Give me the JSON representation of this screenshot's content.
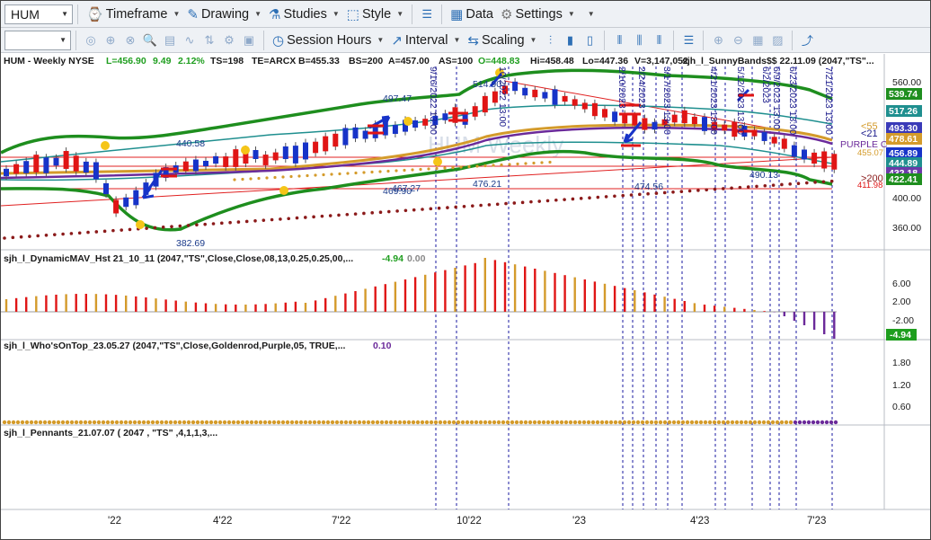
{
  "toolbar": {
    "symbol": "HUM",
    "items": [
      {
        "label": "Timeframe"
      },
      {
        "label": "Drawing"
      },
      {
        "label": "Studies"
      },
      {
        "label": "Style"
      },
      {
        "label": "Data"
      },
      {
        "label": "Settings"
      }
    ]
  },
  "toolbar2": {
    "combo_value": "",
    "session_hours": "Session Hours",
    "interval": "Interval",
    "scaling": "Scaling"
  },
  "price_panel": {
    "header": "HUM - Weekly  NYSE",
    "readouts": [
      {
        "text": "L=456.90",
        "color": "#1f9e1f"
      },
      {
        "text": "9.49",
        "color": "#1f9e1f"
      },
      {
        "text": "2.12%",
        "color": "#1f9e1f"
      },
      {
        "text": "TS=198",
        "color": "#1a1a1a"
      },
      {
        "text": "TE=ARCX",
        "color": "#1a1a1a"
      },
      {
        "text": "B=455.33",
        "color": "#1a1a1a"
      },
      {
        "text": "BS=200",
        "color": "#1a1a1a"
      },
      {
        "text": "A=457.00",
        "color": "#1a1a1a"
      },
      {
        "text": "AS=100",
        "color": "#1a1a1a"
      },
      {
        "text": "O=448.83",
        "color": "#1f9e1f"
      },
      {
        "text": "Hi=458.48",
        "color": "#1a1a1a"
      },
      {
        "text": "Lo=447.36",
        "color": "#1a1a1a"
      },
      {
        "text": "V=3,147,052",
        "color": "#1a1a1a"
      }
    ],
    "study": "sjh_l_SunnyBands$$  22.11.09 (2047,\"TS\"...",
    "watermark": "HUM Weekly",
    "annotations": [
      "440.58",
      "497.47",
      "514.90",
      "382.69",
      "467.27",
      "469.90",
      "476.21",
      "474.56",
      "490.13",
      "<55",
      "<21",
      "PURPLE C",
      "455.07",
      ">200",
      "411.98"
    ],
    "date_labels": [
      "9/16/2022 13:00",
      "10/2022 13:00",
      "2/10/2023",
      "2/24/2023",
      "3/17/2023 13:00",
      "4/21/2023 13:00",
      "5/12/2023 13:00",
      "6/2/2023",
      "6/9/2023 13:00",
      "6/23/2023 13:00",
      "7/21/2023 13:00"
    ],
    "price_ticks": [
      "560.00",
      "400.00",
      "360.00"
    ],
    "price_tags": [
      {
        "label": "539.74",
        "color": "#1e8e1e"
      },
      {
        "label": "517.26",
        "color": "#1f8f8f"
      },
      {
        "label": "493.30",
        "color": "#3a3ab8"
      },
      {
        "label": "478.61",
        "color": "#d49b2b"
      },
      {
        "label": "456.89",
        "color": "#1733c8"
      },
      {
        "label": "444.89",
        "color": "#1f8f8f"
      },
      {
        "label": "432.18",
        "color": "#6b3aa8"
      },
      {
        "label": "422.41",
        "color": "#1e8e1e"
      }
    ]
  },
  "mav_panel": {
    "header": "sjh_l_DynamicMAV_Hst 21_10_11 (2047,\"TS\",Close,Close,08,13,0.25,0.25,00,...",
    "value": "-4.94",
    "value2": "0.00",
    "ticks": [
      "6.00",
      "2.00",
      "-2.00"
    ],
    "tag": "-4.94"
  },
  "wot_panel": {
    "header": "sjh_l_Who'sOnTop_23.05.27 (2047,\"TS\",Close,Goldenrod,Purple,05,  TRUE,...",
    "value": "0.10",
    "ticks": [
      "1.80",
      "1.20",
      "0.60"
    ]
  },
  "pennants_panel": {
    "header": "sjh_l_Pennants_21.07.07 ( 2047 , \"TS\" ,4,1,1,3,..."
  },
  "x_axis": {
    "labels": [
      "'22",
      "4'22",
      "7'22",
      "10'22",
      "'23",
      "4'23",
      "7'23"
    ]
  },
  "colors": {
    "up": "#1733c8",
    "down": "#e01515",
    "green_band": "#1e8e1e",
    "teal_band": "#1f8f8f",
    "gold_ma": "#d49b2b",
    "purple_ma": "#6b2a9a",
    "dotted": "#8b1a1a"
  }
}
